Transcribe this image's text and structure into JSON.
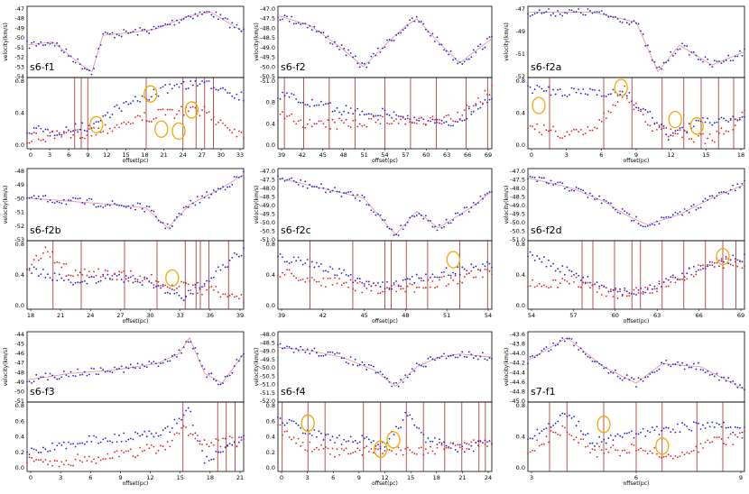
{
  "colors": {
    "blue": "#1f1fd0",
    "red": "#e02020",
    "fit": "#e89090",
    "vline": "#8b1010",
    "circle": "#f5a800"
  },
  "chart_data": [
    {
      "type": "scatter",
      "name": "s6-f1",
      "ylabel": "velocity(km/s)",
      "xlabel": "offset(pc)",
      "vel_ticks": [
        "-47",
        "-48",
        "-49",
        "-50",
        "-51",
        "-52",
        "-53",
        "-54"
      ],
      "x_ticks": [
        "0",
        "3",
        "6",
        "9",
        "12",
        "15",
        "18",
        "21",
        "24",
        "27",
        "30",
        "33"
      ],
      "wid_ticks": [
        "0.8",
        "0.4",
        "0.0"
      ]
    },
    {
      "type": "scatter",
      "name": "s6-f2",
      "ylabel": "velocity(km/s)",
      "xlabel": "offset(pc)",
      "vel_ticks": [
        "-47.0",
        "-47.5",
        "-48.0",
        "-48.5",
        "-49.0",
        "-49.5",
        "-50.0",
        "-50.5"
      ],
      "x_ticks": [
        "39",
        "42",
        "45",
        "48",
        "51",
        "54",
        "57",
        "60",
        "63",
        "66",
        "69"
      ],
      "wid_ticks": [
        "-51.0",
        "0.8",
        "0.4",
        "0.0"
      ]
    },
    {
      "type": "scatter",
      "name": "s6-f2a",
      "ylabel": "velocity(km/s)",
      "xlabel": "offset(pc)",
      "vel_ticks": [
        "-47",
        "-49",
        "-51",
        "-52"
      ],
      "x_ticks": [
        "0",
        "3",
        "6",
        "9",
        "12",
        "15",
        "18"
      ],
      "wid_ticks": [
        "0.8",
        "0.4",
        "0.0"
      ]
    },
    {
      "type": "scatter",
      "name": "s6-f2b",
      "ylabel": "velocity(km/s)",
      "xlabel": "offset(pc)",
      "vel_ticks": [
        "-48",
        "-49",
        "-50",
        "-51",
        "-52",
        "-53"
      ],
      "x_ticks": [
        "18",
        "21",
        "24",
        "27",
        "30",
        "33",
        "36",
        "39"
      ],
      "wid_ticks": [
        "0.8",
        "0.4",
        "0.0"
      ]
    },
    {
      "type": "scatter",
      "name": "s6-f2c",
      "ylabel": "velocity(km/s)",
      "xlabel": "offset(pc)",
      "vel_ticks": [
        "-47.0",
        "-47.5",
        "-48.0",
        "-48.5",
        "-49.0",
        "-49.5",
        "-50.0",
        "-50.5",
        "-51.0"
      ],
      "x_ticks": [
        "39",
        "42",
        "45",
        "48",
        "51",
        "54"
      ],
      "wid_ticks": [
        "0.8",
        "0.4",
        "0.0"
      ]
    },
    {
      "type": "scatter",
      "name": "s6-f2d",
      "ylabel": "velocity(km/s)",
      "xlabel": "offset(pc)",
      "vel_ticks": [
        "-47.0",
        "-47.5",
        "-48.0",
        "-48.5",
        "-49.0",
        "-49.5",
        "-50.0",
        "-50.5",
        "-51.0"
      ],
      "x_ticks": [
        "54",
        "57",
        "60",
        "63",
        "66",
        "69"
      ],
      "wid_ticks": [
        "0.8",
        "0.4",
        "0.0"
      ]
    },
    {
      "type": "scatter",
      "name": "s6-f3",
      "ylabel": "velocity(km/s)",
      "xlabel": "offset(pc)",
      "vel_ticks": [
        "-44",
        "-45",
        "-46",
        "-47",
        "-48",
        "-49",
        "-50",
        "-51"
      ],
      "x_ticks": [
        "0",
        "3",
        "6",
        "9",
        "12",
        "15",
        "18",
        "21"
      ],
      "wid_ticks": [
        "0.8",
        "0.6",
        "0.4",
        "0.2",
        "0.0"
      ]
    },
    {
      "type": "scatter",
      "name": "s6-f4",
      "ylabel": "velocity(km/s)",
      "xlabel": "offset(pc)",
      "vel_ticks": [
        "-48.0",
        "-48.5",
        "-49.0",
        "-49.5",
        "-50.0",
        "-50.5",
        "-51.0",
        "-51.5",
        "-52.0"
      ],
      "x_ticks": [
        "0",
        "3",
        "6",
        "9",
        "12",
        "15",
        "18",
        "21",
        "24"
      ],
      "wid_ticks": [
        "0.8",
        "0.6",
        "0.4",
        "0.2",
        "0.0"
      ]
    },
    {
      "type": "scatter",
      "name": "s7-f1",
      "ylabel": "velocity(km/s)",
      "xlabel": "offset(pc)",
      "vel_ticks": [
        "-43.6",
        "-43.8",
        "-44.0",
        "-44.2",
        "-44.4",
        "-44.6",
        "-44.8",
        "-45.0"
      ],
      "x_ticks": [
        "3",
        "6",
        "9"
      ],
      "wid_ticks": [
        "0.8",
        "0.4",
        "0.0"
      ]
    }
  ]
}
